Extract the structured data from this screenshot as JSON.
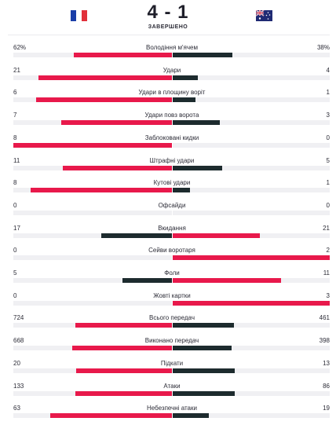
{
  "match": {
    "home_flag": "flag-france-icon",
    "away_flag": "flag-australia-icon",
    "score": "4 - 1",
    "status": "ЗАВЕРШЕНО"
  },
  "colors": {
    "dominant": "#e8194b",
    "secondary": "#1d2b2e",
    "track": "#f0f0f3",
    "flag_fr_blue": "#1a3ea8",
    "flag_fr_white": "#ffffff",
    "flag_fr_red": "#e1303a",
    "flag_au_blue": "#1f2a73"
  },
  "stats": [
    {
      "label": "Володіння м'ячем",
      "home": "62%",
      "away": "38%",
      "home_val": 62,
      "away_val": 38
    },
    {
      "label": "Удари",
      "home": "21",
      "away": "4",
      "home_val": 21,
      "away_val": 4
    },
    {
      "label": "Удари в площину воріт",
      "home": "6",
      "away": "1",
      "home_val": 6,
      "away_val": 1
    },
    {
      "label": "Удари повз ворота",
      "home": "7",
      "away": "3",
      "home_val": 7,
      "away_val": 3
    },
    {
      "label": "Заблоковані кидки",
      "home": "8",
      "away": "0",
      "home_val": 8,
      "away_val": 0
    },
    {
      "label": "Штрафні удари",
      "home": "11",
      "away": "5",
      "home_val": 11,
      "away_val": 5
    },
    {
      "label": "Кутові удари",
      "home": "8",
      "away": "1",
      "home_val": 8,
      "away_val": 1
    },
    {
      "label": "Офсайди",
      "home": "0",
      "away": "0",
      "home_val": 0,
      "away_val": 0
    },
    {
      "label": "Вкидання",
      "home": "17",
      "away": "21",
      "home_val": 17,
      "away_val": 21
    },
    {
      "label": "Сейви воротаря",
      "home": "0",
      "away": "2",
      "home_val": 0,
      "away_val": 2
    },
    {
      "label": "Фоли",
      "home": "5",
      "away": "11",
      "home_val": 5,
      "away_val": 11
    },
    {
      "label": "Жовті картки",
      "home": "0",
      "away": "3",
      "home_val": 0,
      "away_val": 3
    },
    {
      "label": "Всього передач",
      "home": "724",
      "away": "461",
      "home_val": 724,
      "away_val": 461
    },
    {
      "label": "Виконано передач",
      "home": "668",
      "away": "398",
      "home_val": 668,
      "away_val": 398
    },
    {
      "label": "Підкати",
      "home": "20",
      "away": "13",
      "home_val": 20,
      "away_val": 13
    },
    {
      "label": "Атаки",
      "home": "133",
      "away": "86",
      "home_val": 133,
      "away_val": 86
    },
    {
      "label": "Небезпечні атаки",
      "home": "63",
      "away": "19",
      "home_val": 63,
      "away_val": 19
    }
  ]
}
